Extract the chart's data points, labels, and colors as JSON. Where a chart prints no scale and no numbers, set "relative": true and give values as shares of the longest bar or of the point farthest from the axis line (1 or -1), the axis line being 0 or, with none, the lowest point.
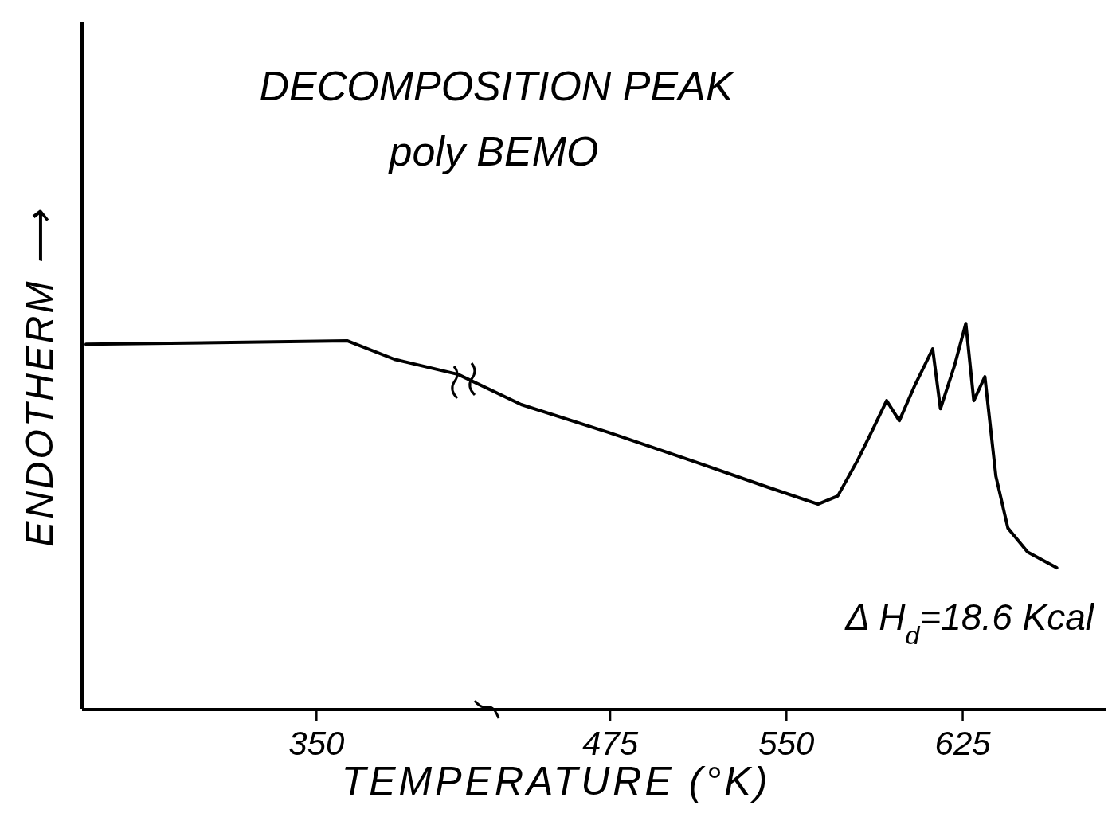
{
  "chart_data": {
    "type": "line",
    "title": "DECOMPOSITION PEAK",
    "subtitle": "poly BEMO",
    "xlabel": "TEMPERATURE (°K)",
    "ylabel": "ENDOTHERM ⟶",
    "relative": true,
    "color": "#000000",
    "line_style": "solid",
    "tick_labels": "x",
    "xlim": [
      250.4,
      686
    ],
    "xticks": [
      350,
      475,
      550,
      625
    ],
    "x": [
      252.1,
      363.2,
      383.4,
      410.4,
      437.3,
      474.3,
      511.4,
      541.7,
      563.6,
      572.0,
      580.4,
      587.1,
      592.8,
      598.2,
      604.9,
      612.4,
      615.7,
      621.8,
      626.5,
      629.9,
      634.6,
      639.3,
      644.4,
      652.8,
      665.2
    ],
    "values": [
      0.946,
      0.955,
      0.907,
      0.868,
      0.79,
      0.718,
      0.641,
      0.577,
      0.532,
      0.553,
      0.645,
      0.728,
      0.8,
      0.748,
      0.841,
      0.934,
      0.779,
      0.893,
      1.0,
      0.8,
      0.862,
      0.604,
      0.47,
      0.408,
      0.367
    ],
    "annotations": [
      "Δ H$_{d}$=18.6 Kcal"
    ]
  }
}
